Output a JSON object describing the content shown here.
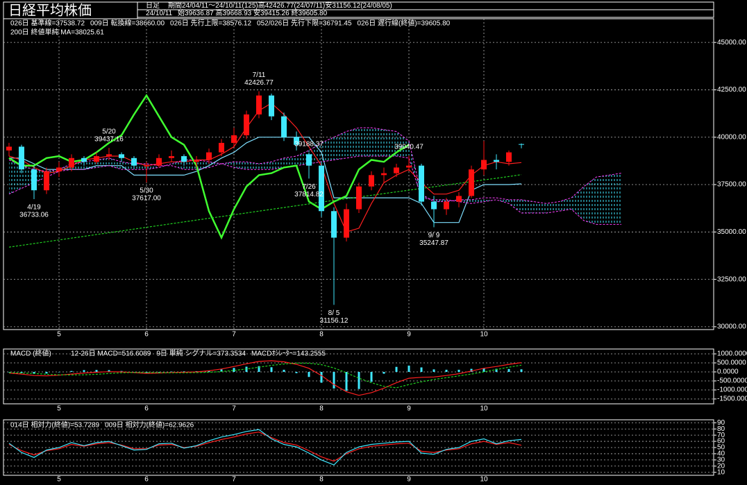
{
  "chart_data": [
    {
      "type": "candlestick",
      "title": "日経平均株価",
      "period_type": "日足",
      "summary": "期間24/04/11～24/10/11(125)高42426.77(24/07/11)安31156.12(24/08/05)",
      "date": "24/10/11",
      "ohlc": "始39636.87 高39668.93 安39415.26 終39605.80",
      "categories": [
        null,
        null,
        null,
        null,
        "5",
        null,
        null,
        null,
        null,
        null,
        null,
        "6",
        null,
        null,
        null,
        null,
        null,
        null,
        "7",
        null,
        null,
        null,
        null,
        null,
        null,
        "8",
        null,
        null,
        null,
        null,
        null,
        null,
        "9",
        null,
        null,
        null,
        null,
        null,
        "10",
        null,
        null,
        null,
        null,
        null,
        null,
        null,
        null,
        null,
        null,
        null
      ],
      "open": [
        39300,
        39500,
        38300,
        37200,
        38200,
        38400,
        38900,
        38700,
        39000,
        39100,
        38900,
        38500,
        38500,
        38900,
        39000,
        38700,
        38800,
        39200,
        39700,
        40100,
        41200,
        42200,
        41100,
        40000,
        39100,
        38500,
        36100,
        34700,
        36200,
        37400,
        38000,
        38100,
        38400,
        38500,
        36600,
        36200,
        36600,
        36900,
        38300,
        38800,
        38700,
        39636.87,
        null,
        null,
        null,
        null,
        null,
        null,
        null,
        null
      ],
      "high": [
        39700,
        39600,
        38500,
        38400,
        38700,
        39100,
        39000,
        39200,
        39437.16,
        39200,
        39000,
        38700,
        39100,
        39300,
        39100,
        39000,
        39400,
        39900,
        40500,
        41400,
        42426.77,
        42300,
        41300,
        40300,
        39188.37,
        38700,
        36300,
        36500,
        37600,
        38200,
        38400,
        38600,
        39040.47,
        38600,
        36900,
        36800,
        37100,
        38500,
        39800,
        39100,
        39300,
        39668.93,
        null,
        null,
        null,
        null,
        null,
        null,
        null,
        null
      ],
      "low": [
        39000,
        38100,
        36733.06,
        37000,
        37900,
        38200,
        38500,
        38600,
        38800,
        38700,
        38300,
        37617,
        38400,
        38700,
        38500,
        38400,
        38600,
        39000,
        39500,
        39900,
        41000,
        40900,
        39800,
        39300,
        37814.82,
        35800,
        31156.12,
        34500,
        36000,
        37200,
        37600,
        37900,
        38200,
        36400,
        35247.87,
        35900,
        36300,
        36800,
        38000,
        38300,
        38500,
        39415.26,
        null,
        null,
        null,
        null,
        null,
        null,
        null,
        null
      ],
      "close": [
        39500,
        38300,
        37200,
        38200,
        38400,
        38900,
        38700,
        39000,
        39100,
        38900,
        38500,
        38500,
        38900,
        39000,
        38700,
        38800,
        39200,
        39700,
        40100,
        41200,
        42200,
        41100,
        40000,
        39600,
        38500,
        36100,
        34700,
        36200,
        37400,
        38000,
        38100,
        38400,
        38500,
        36600,
        36200,
        36600,
        36900,
        38300,
        38800,
        38700,
        39200,
        39605.8,
        null,
        null,
        null,
        null,
        null,
        null,
        null,
        null
      ],
      "up_color": "#ff1010",
      "down_color": "#40e8ff",
      "series": [
        {
          "name": "026日 基準線=37538.72",
          "color": "#7fdfff",
          "style": "solid",
          "values": [
            38900,
            38900,
            38600,
            38300,
            38300,
            38300,
            38300,
            38500,
            38500,
            38500,
            38000,
            38000,
            38000,
            38000,
            38000,
            38200,
            38500,
            38900,
            39200,
            39700,
            40000,
            40000,
            40000,
            40000,
            40000,
            39200,
            36800,
            36800,
            36800,
            36800,
            36800,
            36800,
            36800,
            36500,
            35500,
            35500,
            35500,
            37200,
            37500,
            37500,
            37500,
            37538.72,
            null,
            null,
            null,
            null,
            null,
            null,
            null,
            null
          ]
        },
        {
          "name": "009日 転換線=38660.00",
          "color": "#ff2020",
          "style": "solid",
          "values": [
            39000,
            38800,
            38400,
            38100,
            38200,
            38500,
            38800,
            38900,
            39000,
            39000,
            38700,
            38500,
            38600,
            38700,
            38700,
            38800,
            38800,
            39100,
            39500,
            40500,
            41400,
            41800,
            41200,
            40500,
            39500,
            38500,
            36500,
            35000,
            35200,
            36500,
            37600,
            38000,
            38300,
            37600,
            37000,
            37000,
            37200,
            38000,
            38500,
            38700,
            38600,
            38660,
            null,
            null,
            null,
            null,
            null,
            null,
            null,
            null
          ]
        },
        {
          "name": "026日 先行上限=38576.12",
          "color": "#ff40ff",
          "style": "cloud",
          "values": [
            38800,
            38500,
            38300,
            38200,
            38300,
            38600,
            38700,
            38800,
            38900,
            38700,
            38600,
            38600,
            38500,
            38500,
            38300,
            38300,
            38400,
            38600,
            38700,
            38700,
            38600,
            38700,
            38900,
            39000,
            39300,
            39700,
            40000,
            40300,
            40500,
            40500,
            40400,
            40300,
            39800,
            37000,
            36600,
            36600,
            36700,
            36700,
            36800,
            36800,
            36700,
            36700,
            36600,
            36500,
            36600,
            36800,
            37400,
            37900,
            38000,
            38100
          ]
        },
        {
          "name": "052/026日 先行下限=36791.45",
          "color": "#ff40ff",
          "style": "cloud",
          "values": [
            37000,
            37300,
            37600,
            37900,
            38200,
            38300,
            38300,
            38400,
            38500,
            38300,
            38300,
            38300,
            38400,
            38600,
            38800,
            38800,
            38700,
            38600,
            38400,
            38300,
            38300,
            38300,
            38400,
            38500,
            38600,
            38700,
            38800,
            38900,
            39000,
            39000,
            39000,
            39000,
            38900,
            36800,
            36700,
            36700,
            36600,
            36500,
            36600,
            36700,
            36500,
            36000,
            36000,
            36000,
            36100,
            36200,
            35600,
            35400,
            35400,
            35400
          ]
        },
        {
          "name": "026日 遅行線(終値)=39605.80",
          "color": "#40ff30",
          "style": "thick",
          "values": [
            38900,
            38500,
            38500,
            38900,
            39000,
            38700,
            38800,
            39200,
            39700,
            40100,
            41200,
            42200,
            41100,
            40000,
            39600,
            38500,
            36100,
            34700,
            36200,
            37400,
            38000,
            38100,
            38400,
            38500,
            36600,
            36200,
            36600,
            36900,
            38300,
            38800,
            38700,
            39200,
            39605.8,
            null,
            null,
            null,
            null,
            null,
            null,
            null,
            null,
            null,
            null,
            null,
            null,
            null,
            null,
            null,
            null,
            null
          ]
        },
        {
          "name": "200日 終値単純 MA=38025.61",
          "color": "#20d020",
          "style": "dashed",
          "values": [
            34200,
            34295,
            34390,
            34485,
            34580,
            34675,
            34770,
            34865,
            34960,
            35055,
            35150,
            35245,
            35340,
            35435,
            35530,
            35625,
            35720,
            35815,
            35910,
            36005,
            36100,
            36195,
            36290,
            36385,
            36480,
            36575,
            36665,
            36755,
            36845,
            36935,
            37025,
            37115,
            37205,
            37295,
            37385,
            37475,
            37565,
            37655,
            37745,
            37835,
            37925,
            38025.61,
            null,
            null,
            null,
            null,
            null,
            null,
            null,
            null
          ]
        }
      ],
      "annotations": [
        {
          "date": "4/19",
          "value": 36733.06
        },
        {
          "date": "5/20",
          "value": 39437.16
        },
        {
          "date": "5/30",
          "value": 37617,
          "label": "37617.00"
        },
        {
          "date": "7/11",
          "value": 42426.77
        },
        {
          "value": 39188.37
        },
        {
          "date": "7/26",
          "value": 37814.82
        },
        {
          "date": "8/ 5",
          "value": 31156.12
        },
        {
          "value": 39040.47
        },
        {
          "date": "9/ 9",
          "value": 35247.87
        }
      ],
      "ylim": [
        29850,
        46250
      ],
      "yticks": [
        {
          "value": 30000,
          "label": "30000.00"
        },
        {
          "value": 32500,
          "label": "32500.00"
        },
        {
          "value": 35000,
          "label": "35000.00"
        },
        {
          "value": 37500,
          "label": "37500.00"
        },
        {
          "value": 40000,
          "label": "40000.00"
        },
        {
          "value": 42500,
          "label": "42500.00"
        },
        {
          "value": 45000,
          "label": "45000.00"
        }
      ],
      "grid": true
    },
    {
      "type": "macd",
      "title": "MACD (終値)",
      "series": [
        {
          "name": "12-26日 MACD=516.6089",
          "color": "#ff2020",
          "style": "solid",
          "values": [
            -60,
            -120,
            -200,
            -220,
            -180,
            -120,
            -60,
            -20,
            10,
            0,
            -40,
            -80,
            -60,
            -30,
            -20,
            0,
            60,
            160,
            300,
            450,
            580,
            620,
            560,
            420,
            200,
            -200,
            -700,
            -1100,
            -1300,
            -1150,
            -900,
            -600,
            -350,
            -300,
            -280,
            -200,
            -100,
            50,
            200,
            300,
            420,
            516.6089
          ]
        },
        {
          "name": "9日 単純 シグナル=373.3534",
          "color": "#20d020",
          "style": "dashed",
          "values": [
            -40,
            -60,
            -90,
            -130,
            -160,
            -170,
            -160,
            -130,
            -90,
            -50,
            -30,
            -30,
            -40,
            -50,
            -50,
            -40,
            -20,
            20,
            80,
            160,
            260,
            360,
            440,
            490,
            480,
            400,
            220,
            -50,
            -350,
            -600,
            -800,
            -880,
            -700,
            -550,
            -420,
            -320,
            -220,
            -120,
            0,
            130,
            260,
            373.3534
          ]
        },
        {
          "name": "MACDｵｼﾚｰﾀｰ=143.2555",
          "color": "#40e8ff",
          "style": "bar",
          "values": [
            -20,
            -60,
            -110,
            -90,
            -20,
            50,
            100,
            110,
            100,
            50,
            -10,
            -50,
            -20,
            20,
            30,
            40,
            80,
            140,
            220,
            290,
            320,
            260,
            120,
            -70,
            -280,
            -600,
            -920,
            -1050,
            -950,
            -550,
            -100,
            280,
            350,
            250,
            140,
            120,
            120,
            170,
            200,
            170,
            160,
            143.2555
          ]
        }
      ],
      "ylim": [
        -1770,
        1270
      ],
      "yticks": [
        {
          "value": -1500,
          "label": "-1500.0000"
        },
        {
          "value": -1000,
          "label": "-1000.0000"
        },
        {
          "value": -500,
          "label": "-500.0000"
        },
        {
          "value": 0,
          "label": "0.0000"
        },
        {
          "value": 500,
          "label": "500.0000"
        },
        {
          "value": 1000,
          "label": "1000.0000"
        }
      ],
      "grid": true
    },
    {
      "type": "line",
      "series": [
        {
          "name": "014日 相対力(終値)=53.7289",
          "color": "#ff2020",
          "style": "solid",
          "values": [
            55,
            45,
            38,
            45,
            48,
            55,
            52,
            56,
            58,
            54,
            48,
            48,
            54,
            55,
            50,
            52,
            58,
            63,
            67,
            72,
            75,
            66,
            58,
            54,
            45,
            35,
            28,
            40,
            48,
            52,
            54,
            56,
            57,
            44,
            42,
            46,
            48,
            56,
            60,
            55,
            58,
            53.7289
          ]
        },
        {
          "name": "009日 相対力(終値)=62.9626",
          "color": "#40e8ff",
          "style": "solid",
          "values": [
            57,
            42,
            34,
            46,
            50,
            58,
            53,
            58,
            60,
            53,
            46,
            47,
            56,
            57,
            49,
            53,
            61,
            67,
            71,
            76,
            79,
            64,
            55,
            51,
            41,
            30,
            22,
            42,
            51,
            55,
            57,
            59,
            60,
            41,
            39,
            47,
            50,
            60,
            64,
            56,
            61,
            62.9626
          ]
        }
      ],
      "ylim": [
        5.2,
        94.8
      ],
      "yticks": [
        10,
        20,
        30,
        40,
        50,
        60,
        70,
        80,
        90
      ],
      "grid": true
    }
  ]
}
